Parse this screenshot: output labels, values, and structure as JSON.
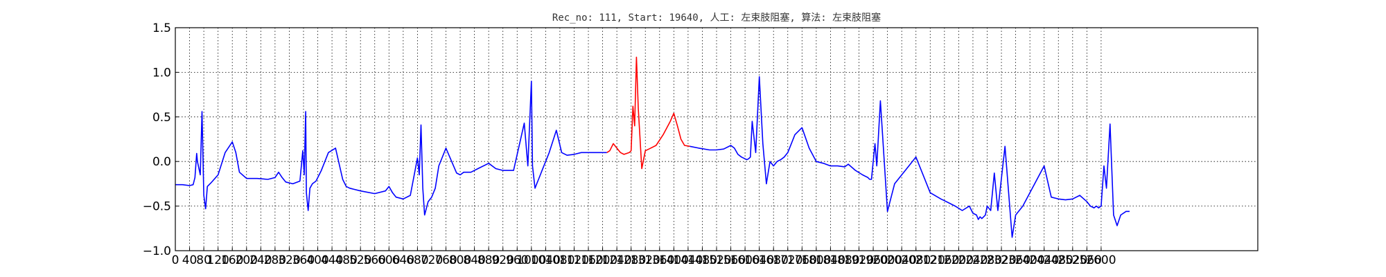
{
  "chart_data": {
    "type": "line",
    "title": "Rec_no: 111, Start: 19640, 人工: 左束肢阻塞, 算法: 左束肢阻塞",
    "xlabel": "",
    "ylabel": "",
    "xlim": [
      0,
      3040
    ],
    "ylim": [
      -1.0,
      1.5
    ],
    "grid": true,
    "y_ticks": [
      -1.0,
      -0.5,
      0.0,
      0.5,
      1.0,
      1.5
    ],
    "y_tick_labels": [
      "−1.0",
      "−0.5",
      "0.0",
      "0.5",
      "1.0",
      "1.5"
    ],
    "x_ticks": [
      0,
      40,
      80,
      120,
      160,
      200,
      240,
      280,
      320,
      360,
      400,
      440,
      480,
      520,
      560,
      600,
      640,
      680,
      720,
      760,
      800,
      840,
      880,
      920,
      960,
      1000,
      1040,
      1080,
      1120,
      1160,
      1200,
      1240,
      1280,
      1320,
      1360,
      1400,
      1440,
      1480,
      1520,
      1560,
      1600,
      1640,
      1680,
      1720,
      1760,
      1800,
      1840,
      1880,
      1920,
      1960,
      2000,
      2040,
      2080,
      2120,
      2160,
      2200,
      2240,
      2280,
      2320,
      2360,
      2400,
      2440,
      2480,
      2520,
      2560,
      2600
    ],
    "x_tick_labels": [
      "0",
      "40",
      "80",
      "120",
      "160",
      "200",
      "240",
      "280",
      "320",
      "360",
      "400",
      "440",
      "480",
      "520",
      "560",
      "600",
      "640",
      "680",
      "720",
      "760",
      "800",
      "840",
      "880",
      "920",
      "960",
      "1000",
      "1040",
      "1080",
      "1120",
      "1160",
      "1200",
      "1240",
      "1280",
      "1320",
      "1360",
      "1400",
      "1440",
      "1480",
      "1520",
      "1560",
      "1600",
      "1640",
      "1680",
      "1720",
      "1760",
      "1800",
      "1840",
      "1880",
      "1920",
      "1960",
      "2000",
      "2040",
      "2080",
      "2120",
      "2160",
      "2200",
      "2240",
      "2280",
      "2320",
      "2360",
      "2400",
      "2440",
      "2480",
      "2520",
      "2560",
      "2600"
    ],
    "series": [
      {
        "color": "#0000ff",
        "x": [
          0,
          20,
          40,
          50,
          55,
          60,
          62,
          70,
          75,
          80,
          85,
          90,
          100,
          120,
          140,
          160,
          170,
          180,
          200,
          230,
          260,
          280,
          290,
          300,
          310,
          330,
          350,
          358,
          362,
          366,
          368,
          373,
          378,
          385,
          395,
          410,
          430,
          450,
          470,
          480,
          490,
          500,
          520,
          560,
          590,
          600,
          610,
          620,
          640,
          660,
          680,
          685,
          690,
          695,
          700,
          710,
          720,
          730,
          740,
          760,
          790,
          800,
          810,
          820,
          830,
          850,
          880,
          900,
          920,
          950,
          980,
          990,
          1000,
          1003,
          1010,
          1015,
          1020,
          1025,
          1030,
          1035,
          1040,
          1050,
          1070,
          1085,
          1100,
          1120,
          1140,
          1160,
          1180,
          1200,
          1212
        ],
        "y": [
          -0.26,
          -0.26,
          -0.27,
          -0.26,
          -0.18,
          0.09,
          0.0,
          -0.15,
          0.56,
          -0.38,
          -0.53,
          -0.28,
          -0.24,
          -0.15,
          0.1,
          0.22,
          0.1,
          -0.12,
          -0.19,
          -0.19,
          -0.2,
          -0.18,
          -0.12,
          -0.18,
          -0.23,
          -0.25,
          -0.22,
          0.12,
          -0.15,
          0.56,
          -0.35,
          -0.55,
          -0.3,
          -0.25,
          -0.22,
          -0.1,
          0.1,
          0.15,
          -0.2,
          -0.28,
          -0.3,
          -0.31,
          -0.33,
          -0.36,
          -0.33,
          -0.28,
          -0.35,
          -0.4,
          -0.42,
          -0.38,
          0.04,
          -0.15,
          0.41,
          -0.3,
          -0.6,
          -0.45,
          -0.4,
          -0.3,
          -0.05,
          0.15,
          -0.13,
          -0.15,
          -0.12,
          -0.12,
          -0.12,
          -0.08,
          -0.02,
          -0.08,
          -0.1,
          -0.1,
          0.43,
          -0.05,
          0.9,
          -0.05,
          -0.3,
          -0.25,
          -0.2,
          -0.15,
          -0.1,
          -0.05,
          0.0,
          0.1,
          0.35,
          0.1,
          0.07,
          0.08,
          0.1,
          0.1,
          0.1,
          0.1,
          0.1
        ]
      },
      {
        "color": "#ff0000",
        "x": [
          1212,
          1220,
          1230,
          1240,
          1250,
          1260,
          1275,
          1280,
          1285,
          1290,
          1295,
          1300,
          1310,
          1320,
          1330,
          1350,
          1370,
          1390,
          1400,
          1410,
          1420,
          1430,
          1445
        ],
        "y": [
          0.1,
          0.12,
          0.2,
          0.15,
          0.1,
          0.08,
          0.1,
          0.12,
          0.62,
          0.4,
          1.17,
          0.6,
          -0.08,
          0.12,
          0.14,
          0.18,
          0.3,
          0.45,
          0.54,
          0.4,
          0.25,
          0.18,
          0.17
        ]
      },
      {
        "color": "#0000ff",
        "x": [
          1445,
          1470,
          1500,
          1520,
          1540,
          1560,
          1570,
          1580,
          1590,
          1600,
          1605,
          1610,
          1615,
          1620,
          1630,
          1640,
          1650,
          1660,
          1670,
          1680,
          1690,
          1700,
          1710,
          1720,
          1740,
          1760,
          1780,
          1800,
          1820,
          1840,
          1860,
          1880,
          1890,
          1910,
          1930,
          1945,
          1950,
          1955,
          1965,
          1970,
          1980,
          2000,
          2020,
          2040,
          2060,
          2080,
          2120,
          2150,
          2170,
          2190,
          2210,
          2230,
          2240,
          2250,
          2255,
          2260,
          2265,
          2270,
          2275,
          2280,
          2290,
          2300,
          2310,
          2330,
          2350,
          2360,
          2380,
          2420,
          2440,
          2460,
          2480,
          2500,
          2520,
          2540,
          2560,
          2570,
          2580,
          2587,
          2593,
          2600,
          2608,
          2615,
          2625,
          2635,
          2645,
          2655,
          2670,
          2680
        ],
        "y": [
          0.17,
          0.15,
          0.13,
          0.13,
          0.14,
          0.18,
          0.15,
          0.08,
          0.05,
          0.03,
          0.02,
          0.03,
          0.05,
          0.45,
          0.1,
          0.95,
          0.2,
          -0.25,
          0.0,
          -0.05,
          0.0,
          0.02,
          0.05,
          0.1,
          0.3,
          0.38,
          0.15,
          0.0,
          -0.02,
          -0.05,
          -0.05,
          -0.06,
          -0.03,
          -0.1,
          -0.15,
          -0.18,
          -0.2,
          -0.2,
          0.2,
          -0.05,
          0.68,
          -0.56,
          -0.25,
          -0.15,
          -0.05,
          0.05,
          -0.35,
          -0.42,
          -0.46,
          -0.5,
          -0.55,
          -0.5,
          -0.58,
          -0.6,
          -0.65,
          -0.62,
          -0.64,
          -0.62,
          -0.6,
          -0.5,
          -0.55,
          -0.13,
          -0.55,
          0.17,
          -0.85,
          -0.6,
          -0.5,
          -0.2,
          -0.05,
          -0.4,
          -0.42,
          -0.43,
          -0.42,
          -0.38,
          -0.45,
          -0.5,
          -0.52,
          -0.5,
          -0.52,
          -0.5,
          -0.05,
          -0.3,
          0.42,
          -0.6,
          -0.72,
          -0.6,
          -0.56,
          -0.56
        ]
      }
    ]
  }
}
